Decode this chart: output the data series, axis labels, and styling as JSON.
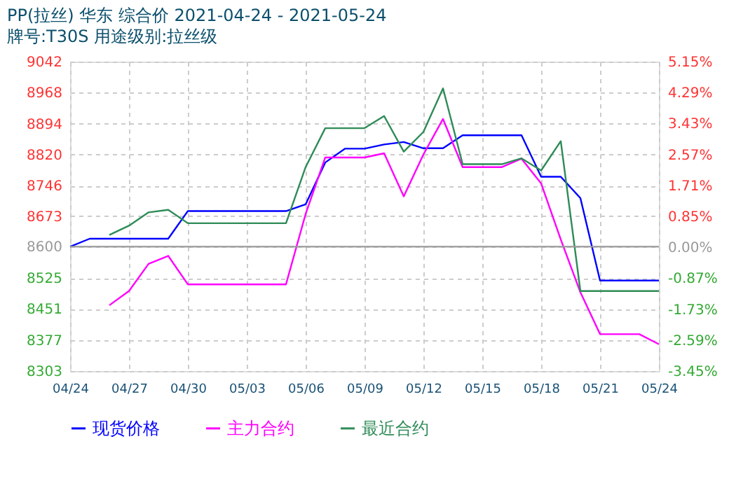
{
  "chart_data": {
    "type": "line",
    "title": "PP(拉丝) 华东 综合价 2021-04-24 - 2021-05-24",
    "subtitle": "牌号:T30S 用途级别:拉丝级",
    "x": [
      "--04-24",
      "--04-25",
      "--04-26",
      "--04-27",
      "--04-28",
      "--04-29",
      "--04-30",
      "--05-01",
      "--05-02",
      "--05-03",
      "--05-04",
      "--05-05",
      "--05-06",
      "--05-07",
      "--05-08",
      "--05-09",
      "--05-10",
      "--05-11",
      "--05-12",
      "--05-13",
      "--05-14",
      "--05-15",
      "--05-16",
      "--05-17",
      "--05-18",
      "--05-19",
      "--05-20",
      "--05-21",
      "--05-22",
      "--05-23",
      "--05-24"
    ],
    "series": [
      {
        "name": "现货价格",
        "color": "#0000ff",
        "values": [
          8600,
          8619,
          8619,
          8619,
          8619,
          8619,
          8685,
          8685,
          8685,
          8685,
          8685,
          8685,
          8701,
          8801,
          8834,
          8834,
          8844,
          8850,
          8835,
          8835,
          8866,
          8866,
          8866,
          8866,
          8767,
          8767,
          8716,
          8519,
          8519,
          8519,
          8519
        ]
      },
      {
        "name": "主力合约",
        "color": "#ff00ff",
        "values": [
          null,
          null,
          8460,
          8494,
          8559,
          8578,
          8510,
          8510,
          8510,
          8510,
          8510,
          8510,
          8678,
          8813,
          8813,
          8813,
          8823,
          8720,
          8820,
          8905,
          8790,
          8790,
          8790,
          8810,
          8751,
          8617,
          8491,
          8391,
          8391,
          8391,
          8367
        ]
      },
      {
        "name": "最近合约",
        "color": "#2e8b57",
        "values": [
          null,
          null,
          8628,
          8650,
          8682,
          8688,
          8656,
          8656,
          8656,
          8656,
          8656,
          8656,
          8790,
          8883,
          8883,
          8883,
          8912,
          8827,
          8874,
          8978,
          8797,
          8797,
          8797,
          8811,
          8782,
          8852,
          8494,
          8494,
          8494,
          8494,
          8494
        ]
      }
    ],
    "xlim": [
      "--04-24",
      "--05-24"
    ],
    "xticks": [
      {
        "value": "--04-24",
        "label": "04/24"
      },
      {
        "value": "--04-27",
        "label": "04/27"
      },
      {
        "value": "--04-30",
        "label": "04/30"
      },
      {
        "value": "--05-03",
        "label": "05/03"
      },
      {
        "value": "--05-06",
        "label": "05/06"
      },
      {
        "value": "--05-09",
        "label": "05/09"
      },
      {
        "value": "--05-12",
        "label": "05/12"
      },
      {
        "value": "--05-15",
        "label": "05/15"
      },
      {
        "value": "--05-18",
        "label": "05/18"
      },
      {
        "value": "--05-21",
        "label": "05/21"
      },
      {
        "value": "--05-24",
        "label": "05/24"
      }
    ],
    "ylim": [
      8303,
      9042
    ],
    "yticks": [
      8303,
      8377,
      8451,
      8525,
      8600,
      8673,
      8746,
      8820,
      8894,
      8968,
      9042
    ],
    "y2lim": [
      -3.45,
      5.15
    ],
    "y2ticks": [
      {
        "value": -3.45,
        "label": "-3.45%"
      },
      {
        "value": -2.59,
        "label": "-2.59%"
      },
      {
        "value": -1.73,
        "label": "-1.73%"
      },
      {
        "value": -0.87,
        "label": "-0.87%"
      },
      {
        "value": 0,
        "label": "0.00%"
      },
      {
        "value": 0.85,
        "label": "0.85%"
      },
      {
        "value": 1.71,
        "label": "1.71%"
      },
      {
        "value": 2.57,
        "label": "2.57%"
      },
      {
        "value": 3.43,
        "label": "3.43%"
      },
      {
        "value": 4.29,
        "label": "4.29%"
      },
      {
        "value": 5.15,
        "label": "5.15%"
      }
    ],
    "ref_lines": [
      {
        "axis": "y",
        "value": 8600,
        "color": "#999999"
      }
    ],
    "grid": true,
    "legend": "bottom",
    "marker": "none",
    "line_style": "solid"
  }
}
